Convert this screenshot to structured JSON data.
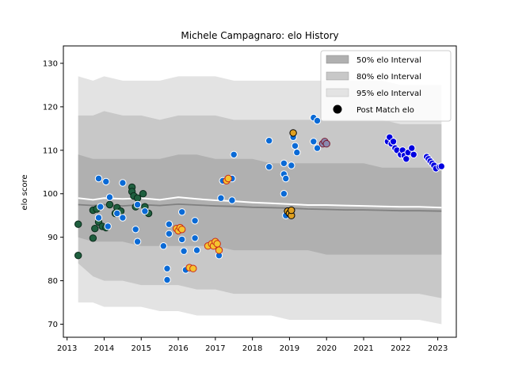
{
  "chart_data": {
    "type": "scatter",
    "title": "Michele Campagnaro: elo History",
    "xlabel": "",
    "ylabel": "elo score",
    "xlim": [
      2012.9,
      2023.5
    ],
    "ylim": [
      67,
      134
    ],
    "x_ticks": [
      2013,
      2014,
      2015,
      2016,
      2017,
      2018,
      2019,
      2020,
      2021,
      2022,
      2023
    ],
    "y_ticks": [
      70,
      80,
      90,
      100,
      110,
      120,
      130
    ],
    "grid": false,
    "legend_position": "top-right",
    "legend": [
      {
        "label": "50% elo Interval",
        "kind": "band",
        "color": "#b0b0b0"
      },
      {
        "label": "80% elo Interval",
        "kind": "band",
        "color": "#c8c8c8"
      },
      {
        "label": "95% elo Interval",
        "kind": "band",
        "color": "#e3e3e3"
      },
      {
        "label": "Post Match elo",
        "kind": "marker",
        "color": "#000000"
      }
    ],
    "band_x": [
      2013.3,
      2013.7,
      2014.0,
      2014.5,
      2015.0,
      2015.5,
      2016.0,
      2016.5,
      2017.0,
      2017.5,
      2018.0,
      2018.5,
      2019.0,
      2019.5,
      2020.0,
      2020.5,
      2021.0,
      2021.5,
      2022.0,
      2022.5,
      2023.1
    ],
    "band_95_upper": [
      127,
      126,
      127,
      126,
      126,
      126,
      127,
      127,
      127,
      126,
      126,
      126,
      126,
      126,
      126,
      126,
      126,
      126,
      125,
      125,
      125
    ],
    "band_95_lower": [
      75,
      75,
      74,
      74,
      74,
      73,
      73,
      72,
      72,
      72,
      72,
      72,
      71,
      71,
      71,
      71,
      71,
      71,
      71,
      71,
      70
    ],
    "band_80_upper": [
      118,
      118,
      119,
      118,
      118,
      117,
      118,
      118,
      118,
      117,
      117,
      117,
      117,
      117,
      117,
      117,
      117,
      117,
      116,
      116,
      116
    ],
    "band_80_lower": [
      84,
      81,
      80,
      80,
      79,
      79,
      79,
      78,
      78,
      77,
      77,
      77,
      77,
      77,
      77,
      77,
      77,
      77,
      77,
      77,
      76
    ],
    "band_50_upper": [
      109,
      108,
      108,
      108,
      108,
      108,
      109,
      109,
      108,
      108,
      108,
      107,
      107,
      107,
      107,
      107,
      107,
      106,
      106,
      106,
      106
    ],
    "band_50_lower": [
      90,
      89,
      89,
      89,
      88,
      88,
      88,
      88,
      88,
      87,
      87,
      87,
      87,
      87,
      86,
      86,
      86,
      86,
      86,
      86,
      86
    ],
    "mean_line": [
      97.5,
      97.3,
      97.5,
      97.2,
      97.5,
      97.3,
      97.6,
      97.4,
      97.2,
      97.1,
      96.9,
      96.8,
      96.7,
      96.5,
      96.4,
      96.3,
      96.3,
      96.2,
      96.1,
      96.1,
      96.0
    ],
    "median_line": [
      99,
      98.6,
      99,
      98.8,
      99,
      98.6,
      99.2,
      98.8,
      98.5,
      98.3,
      98,
      97.8,
      97.6,
      97.4,
      97.4,
      97.3,
      97.2,
      97.1,
      97,
      97,
      96.8
    ],
    "series": [
      {
        "color": "#1f5f3f",
        "edge": "#0a2a1a",
        "points": [
          {
            "x": 2013.3,
            "y": 93
          },
          {
            "x": 2013.3,
            "y": 85.8
          },
          {
            "x": 2013.7,
            "y": 89.8
          },
          {
            "x": 2013.7,
            "y": 96.2
          },
          {
            "x": 2013.75,
            "y": 92
          },
          {
            "x": 2013.8,
            "y": 96.5
          },
          {
            "x": 2013.85,
            "y": 93.5
          },
          {
            "x": 2013.95,
            "y": 92.5
          },
          {
            "x": 2014.05,
            "y": 92.2
          },
          {
            "x": 2014.15,
            "y": 97.5
          },
          {
            "x": 2014.3,
            "y": 95.5
          },
          {
            "x": 2014.35,
            "y": 96.8
          },
          {
            "x": 2014.45,
            "y": 96
          },
          {
            "x": 2014.75,
            "y": 101.5
          },
          {
            "x": 2014.75,
            "y": 100.5
          },
          {
            "x": 2014.8,
            "y": 99.5
          },
          {
            "x": 2014.85,
            "y": 97
          },
          {
            "x": 2014.9,
            "y": 99
          },
          {
            "x": 2015.05,
            "y": 100
          },
          {
            "x": 2015.1,
            "y": 97
          },
          {
            "x": 2015.2,
            "y": 95.5
          }
        ]
      },
      {
        "color": "#0a6ad6",
        "edge": "#ffffff",
        "points": [
          {
            "x": 2013.85,
            "y": 103.5
          },
          {
            "x": 2014.05,
            "y": 102.8
          },
          {
            "x": 2013.9,
            "y": 97
          },
          {
            "x": 2013.85,
            "y": 94.5
          },
          {
            "x": 2014.1,
            "y": 92.5
          },
          {
            "x": 2014.15,
            "y": 99.2
          },
          {
            "x": 2014.35,
            "y": 95.5
          },
          {
            "x": 2014.5,
            "y": 102.5
          },
          {
            "x": 2014.5,
            "y": 94.5
          },
          {
            "x": 2014.85,
            "y": 91.8
          },
          {
            "x": 2014.9,
            "y": 89
          },
          {
            "x": 2014.9,
            "y": 97.5
          },
          {
            "x": 2015.1,
            "y": 96
          },
          {
            "x": 2015.6,
            "y": 88
          },
          {
            "x": 2015.7,
            "y": 82.8
          },
          {
            "x": 2015.7,
            "y": 80.2
          },
          {
            "x": 2015.75,
            "y": 93
          },
          {
            "x": 2015.75,
            "y": 90.8
          },
          {
            "x": 2016.1,
            "y": 95.8
          },
          {
            "x": 2016.1,
            "y": 89.5
          },
          {
            "x": 2016.15,
            "y": 86.8
          },
          {
            "x": 2016.2,
            "y": 82.5
          },
          {
            "x": 2016.45,
            "y": 89.8
          },
          {
            "x": 2016.45,
            "y": 93.8
          },
          {
            "x": 2016.5,
            "y": 87
          },
          {
            "x": 2017.1,
            "y": 85.8
          },
          {
            "x": 2017.15,
            "y": 99
          },
          {
            "x": 2017.2,
            "y": 103
          },
          {
            "x": 2017.45,
            "y": 98.5
          },
          {
            "x": 2017.45,
            "y": 103.5
          },
          {
            "x": 2017.5,
            "y": 109
          },
          {
            "x": 2018.45,
            "y": 112.2
          },
          {
            "x": 2018.45,
            "y": 106.2
          },
          {
            "x": 2018.85,
            "y": 107
          },
          {
            "x": 2018.85,
            "y": 104.5
          },
          {
            "x": 2018.9,
            "y": 103.5
          },
          {
            "x": 2018.85,
            "y": 100
          },
          {
            "x": 2018.9,
            "y": 95
          },
          {
            "x": 2019.05,
            "y": 106.5
          },
          {
            "x": 2019.1,
            "y": 113
          },
          {
            "x": 2019.15,
            "y": 111
          },
          {
            "x": 2019.2,
            "y": 109.5
          },
          {
            "x": 2019.65,
            "y": 117.5
          },
          {
            "x": 2019.75,
            "y": 116.8
          },
          {
            "x": 2019.65,
            "y": 112
          },
          {
            "x": 2019.75,
            "y": 110.5
          }
        ]
      },
      {
        "color": "#f4c430",
        "edge": "#cc2a1a",
        "points": [
          {
            "x": 2015.95,
            "y": 92
          },
          {
            "x": 2016.0,
            "y": 91.5
          },
          {
            "x": 2016.05,
            "y": 92.2
          },
          {
            "x": 2016.1,
            "y": 91.8
          },
          {
            "x": 2016.3,
            "y": 83
          },
          {
            "x": 2016.4,
            "y": 82.8
          },
          {
            "x": 2016.8,
            "y": 88
          },
          {
            "x": 2016.9,
            "y": 88.5
          },
          {
            "x": 2016.95,
            "y": 88
          },
          {
            "x": 2017.0,
            "y": 89
          },
          {
            "x": 2017.05,
            "y": 88.5
          },
          {
            "x": 2017.1,
            "y": 87
          },
          {
            "x": 2017.3,
            "y": 103
          },
          {
            "x": 2017.35,
            "y": 103.5
          }
        ]
      },
      {
        "color": "#e0a020",
        "edge": "#000000",
        "points": [
          {
            "x": 2018.95,
            "y": 96
          },
          {
            "x": 2019.0,
            "y": 95.5
          },
          {
            "x": 2019.05,
            "y": 95
          },
          {
            "x": 2019.05,
            "y": 96.2
          },
          {
            "x": 2019.1,
            "y": 114
          }
        ]
      },
      {
        "color": "#8a8ab0",
        "edge": "#7a1a30",
        "points": [
          {
            "x": 2019.9,
            "y": 111.5
          },
          {
            "x": 2019.95,
            "y": 112
          },
          {
            "x": 2020.0,
            "y": 111.5
          }
        ]
      },
      {
        "color": "#0000e0",
        "edge": "#ffffff",
        "points": [
          {
            "x": 2021.65,
            "y": 112
          },
          {
            "x": 2021.7,
            "y": 113
          },
          {
            "x": 2021.75,
            "y": 111.5
          },
          {
            "x": 2021.8,
            "y": 112
          },
          {
            "x": 2021.85,
            "y": 110.5
          },
          {
            "x": 2021.9,
            "y": 110
          },
          {
            "x": 2022.0,
            "y": 109
          },
          {
            "x": 2022.05,
            "y": 110
          },
          {
            "x": 2022.1,
            "y": 108.8
          },
          {
            "x": 2022.15,
            "y": 108
          },
          {
            "x": 2022.2,
            "y": 109.5
          },
          {
            "x": 2022.3,
            "y": 110.5
          },
          {
            "x": 2022.35,
            "y": 109
          },
          {
            "x": 2022.7,
            "y": 108.5
          },
          {
            "x": 2022.75,
            "y": 108
          },
          {
            "x": 2022.8,
            "y": 107.5
          },
          {
            "x": 2022.85,
            "y": 107
          },
          {
            "x": 2022.9,
            "y": 106.5
          },
          {
            "x": 2022.95,
            "y": 105.8
          },
          {
            "x": 2023.05,
            "y": 106.2
          },
          {
            "x": 2023.1,
            "y": 106.3
          }
        ]
      }
    ]
  }
}
